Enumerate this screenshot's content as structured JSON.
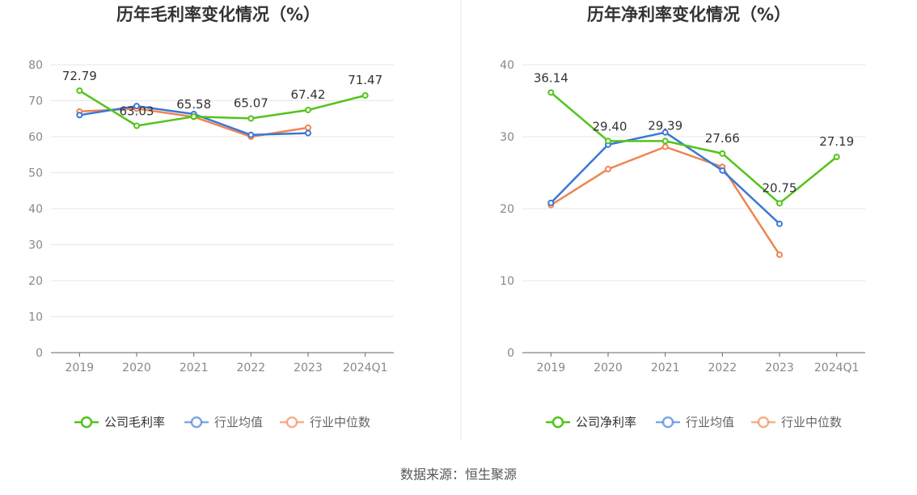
{
  "source_text": "数据来源：恒生聚源",
  "chart_data": [
    {
      "type": "line",
      "title": "历年毛利率变化情况（%）",
      "categories": [
        "2019",
        "2020",
        "2021",
        "2022",
        "2023",
        "2024Q1"
      ],
      "ylim": [
        0,
        80
      ],
      "yticks": [
        0,
        10,
        20,
        30,
        40,
        50,
        60,
        70,
        80
      ],
      "xlabel": "",
      "ylabel": "",
      "series": [
        {
          "name": "公司毛利率",
          "color": "#52c41a",
          "values": [
            72.79,
            63.03,
            65.58,
            65.07,
            67.42,
            71.47
          ],
          "labels": [
            "72.79",
            "63.03",
            "65.58",
            "65.07",
            "67.42",
            "71.47"
          ]
        },
        {
          "name": "行业均值",
          "color": "#3a78d8",
          "values": [
            66.0,
            68.5,
            66.3,
            60.5,
            61.0,
            null
          ]
        },
        {
          "name": "行业中位数",
          "color": "#ef8451",
          "values": [
            67.0,
            67.8,
            65.5,
            60.0,
            62.5,
            null
          ]
        }
      ]
    },
    {
      "type": "line",
      "title": "历年净利率变化情况（%）",
      "categories": [
        "2019",
        "2020",
        "2021",
        "2022",
        "2023",
        "2024Q1"
      ],
      "ylim": [
        0,
        40
      ],
      "yticks": [
        0,
        10,
        20,
        30,
        40
      ],
      "xlabel": "",
      "ylabel": "",
      "series": [
        {
          "name": "公司净利率",
          "color": "#52c41a",
          "values": [
            36.14,
            29.4,
            29.39,
            27.66,
            20.75,
            27.19
          ],
          "labels": [
            "36.14",
            "29.40",
            "29.39",
            "27.66",
            "20.75",
            "27.19"
          ]
        },
        {
          "name": "行业均值",
          "color": "#3a78d8",
          "values": [
            20.8,
            28.9,
            30.6,
            25.3,
            17.9,
            null
          ]
        },
        {
          "name": "行业中位数",
          "color": "#ef8451",
          "values": [
            20.5,
            25.5,
            28.6,
            25.8,
            13.6,
            null
          ]
        }
      ]
    }
  ]
}
